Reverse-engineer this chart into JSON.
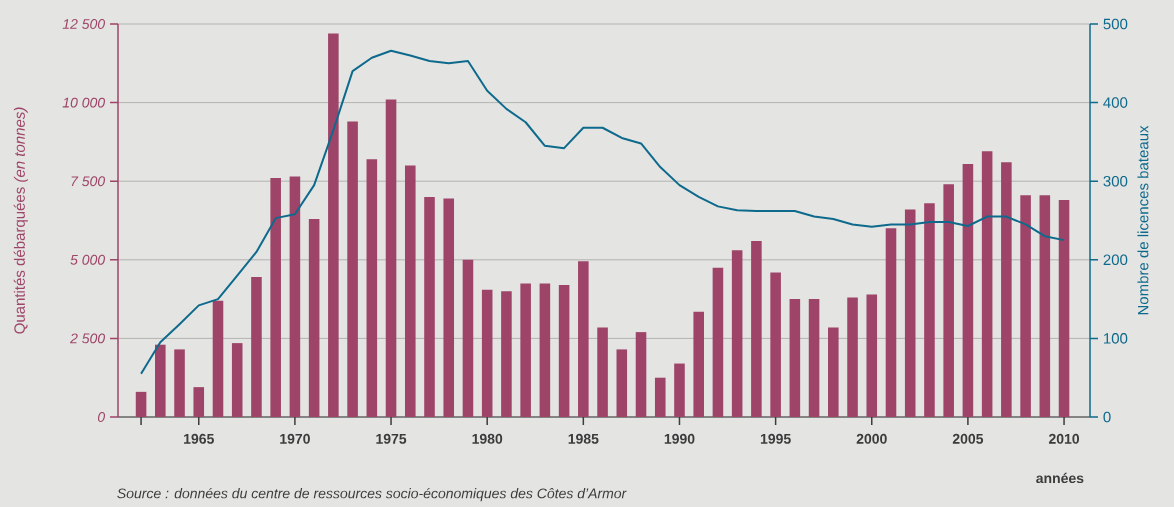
{
  "chart_data": {
    "type": "bar",
    "ylabel": "Quantités débarquées *(en tonnes)*",
    "y2label": "Nombre de licences bateaux",
    "xlabel": "années",
    "annotations": [
      "Source : données du centre de ressources socio-économiques des Côtes d’Armor"
    ],
    "x": [
      1962,
      1963,
      1964,
      1965,
      1966,
      1967,
      1968,
      1969,
      1970,
      1971,
      1972,
      1973,
      1974,
      1975,
      1976,
      1977,
      1978,
      1979,
      1980,
      1981,
      1982,
      1983,
      1984,
      1985,
      1986,
      1987,
      1988,
      1989,
      1990,
      1991,
      1992,
      1993,
      1994,
      1995,
      1996,
      1997,
      1998,
      1999,
      2000,
      2001,
      2002,
      2003,
      2004,
      2005,
      2006,
      2007,
      2008,
      2009,
      2010
    ],
    "xlim": [
      1960.8,
      2011.35
    ],
    "xticks": [
      {
        "value": 1962,
        "label": null
      },
      1965,
      1970,
      1975,
      1980,
      1985,
      1990,
      1995,
      2000,
      2005,
      2010
    ],
    "ylim": [
      0,
      12500
    ],
    "yticks": [
      0,
      {
        "value": 2500,
        "label": "2 500"
      },
      {
        "value": 5000,
        "label": "5 000"
      },
      {
        "value": 7500,
        "label": "7 500"
      },
      {
        "value": 10000,
        "label": "10 000"
      },
      {
        "value": 12500,
        "label": "12 500"
      }
    ],
    "y2lim": [
      0,
      500
    ],
    "y2ticks": [
      0,
      100,
      200,
      300,
      400,
      500
    ],
    "grid": "y",
    "series": [
      {
        "color": "#9e4468",
        "values": [
          800,
          2300,
          2150,
          950,
          3700,
          2350,
          4450,
          7600,
          7650,
          6300,
          12200,
          9400,
          8200,
          10100,
          8000,
          7000,
          6950,
          5000,
          4050,
          4000,
          4250,
          4250,
          4200,
          4950,
          2850,
          2150,
          2700,
          1250,
          1700,
          3350,
          4750,
          5300,
          5600,
          4600,
          3750,
          3750,
          2850,
          3800,
          3900,
          6000,
          6600,
          6800,
          7400,
          8050,
          8450,
          8100,
          7050,
          7050,
          6900
        ]
      },
      {
        "type": "line",
        "axis": "y2",
        "color": "#0e6a8c",
        "values": [
          55,
          95,
          118,
          142,
          150,
          180,
          210,
          253,
          258,
          295,
          365,
          440,
          457,
          466,
          460,
          453,
          450,
          453,
          415,
          392,
          375,
          345,
          342,
          368,
          368,
          355,
          348,
          318,
          295,
          280,
          268,
          263,
          262,
          262,
          262,
          255,
          252,
          245,
          242,
          245,
          245,
          248,
          248,
          243,
          255,
          255,
          245,
          230,
          225
        ]
      }
    ]
  }
}
